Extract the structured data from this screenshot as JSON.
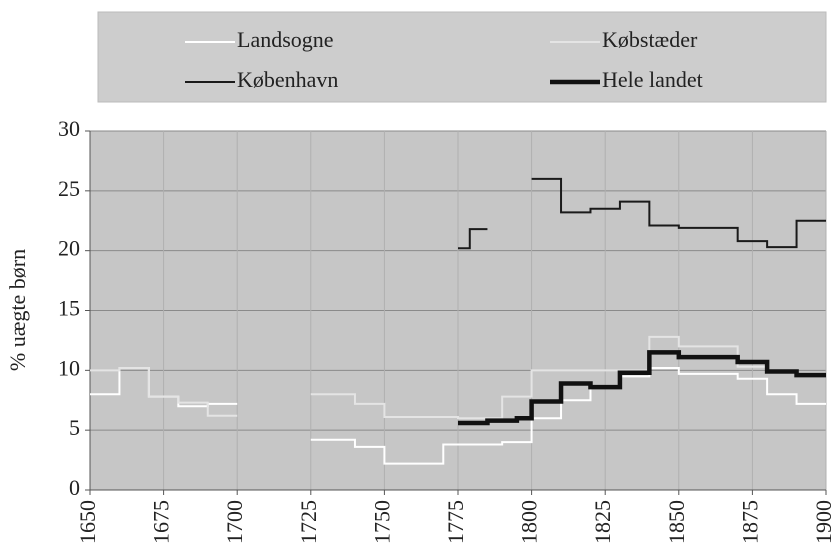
{
  "chart_data": {
    "type": "step",
    "ylabel": "% uægte børn",
    "xlim": [
      1650,
      1900
    ],
    "xticks": [
      1650,
      1675,
      1700,
      1725,
      1750,
      1775,
      1800,
      1825,
      1850,
      1875,
      1900
    ],
    "ylim": [
      0,
      30
    ],
    "yticks": [
      0,
      5,
      10,
      15,
      20,
      25,
      30
    ],
    "grid": true,
    "legend": "top",
    "series": [
      {
        "name": "Landsogne",
        "color": "#ffffff",
        "width": 2,
        "x": [
          1650,
          1660,
          1670,
          1680,
          1690,
          1700,
          1725,
          1740,
          1750,
          1770,
          1790,
          1800,
          1810,
          1820,
          1830,
          1840,
          1850,
          1870,
          1880,
          1890,
          1900
        ],
        "values": [
          8,
          10.2,
          7.8,
          7,
          7.2,
          null,
          4.2,
          3.6,
          2.2,
          3.8,
          4,
          6,
          7.5,
          8.6,
          9.5,
          10.2,
          9.7,
          9.3,
          8,
          7.2,
          7.2
        ]
      },
      {
        "name": "Købstæder",
        "color": "#e4e4e4",
        "width": 2,
        "x": [
          1650,
          1660,
          1670,
          1680,
          1690,
          1700,
          1725,
          1740,
          1750,
          1775,
          1790,
          1800,
          1840,
          1850,
          1870,
          1880,
          1890,
          1900
        ],
        "values": [
          10,
          10.2,
          7.8,
          7.3,
          6.2,
          null,
          8,
          7.2,
          6.1,
          6,
          7.8,
          10,
          12.8,
          12,
          10.3,
          9.8,
          9.5,
          9.5
        ]
      },
      {
        "name": "København",
        "color": "#1a1a1a",
        "width": 2,
        "x": [
          1775,
          1779,
          1785,
          1800,
          1810,
          1820,
          1830,
          1840,
          1850,
          1870,
          1880,
          1890,
          1900
        ],
        "values": [
          20.2,
          21.8,
          null,
          26,
          23.2,
          23.5,
          24.1,
          22.1,
          21.9,
          20.8,
          20.3,
          22.5,
          22.5
        ]
      },
      {
        "name": "Hele landet",
        "color": "#111111",
        "width": 4.5,
        "x": [
          1775,
          1785,
          1795,
          1800,
          1810,
          1820,
          1830,
          1840,
          1850,
          1870,
          1880,
          1890,
          1900
        ],
        "values": [
          5.6,
          5.8,
          6,
          7.4,
          8.9,
          8.6,
          9.8,
          11.5,
          11.1,
          10.7,
          9.9,
          9.6,
          9.6
        ]
      }
    ]
  }
}
